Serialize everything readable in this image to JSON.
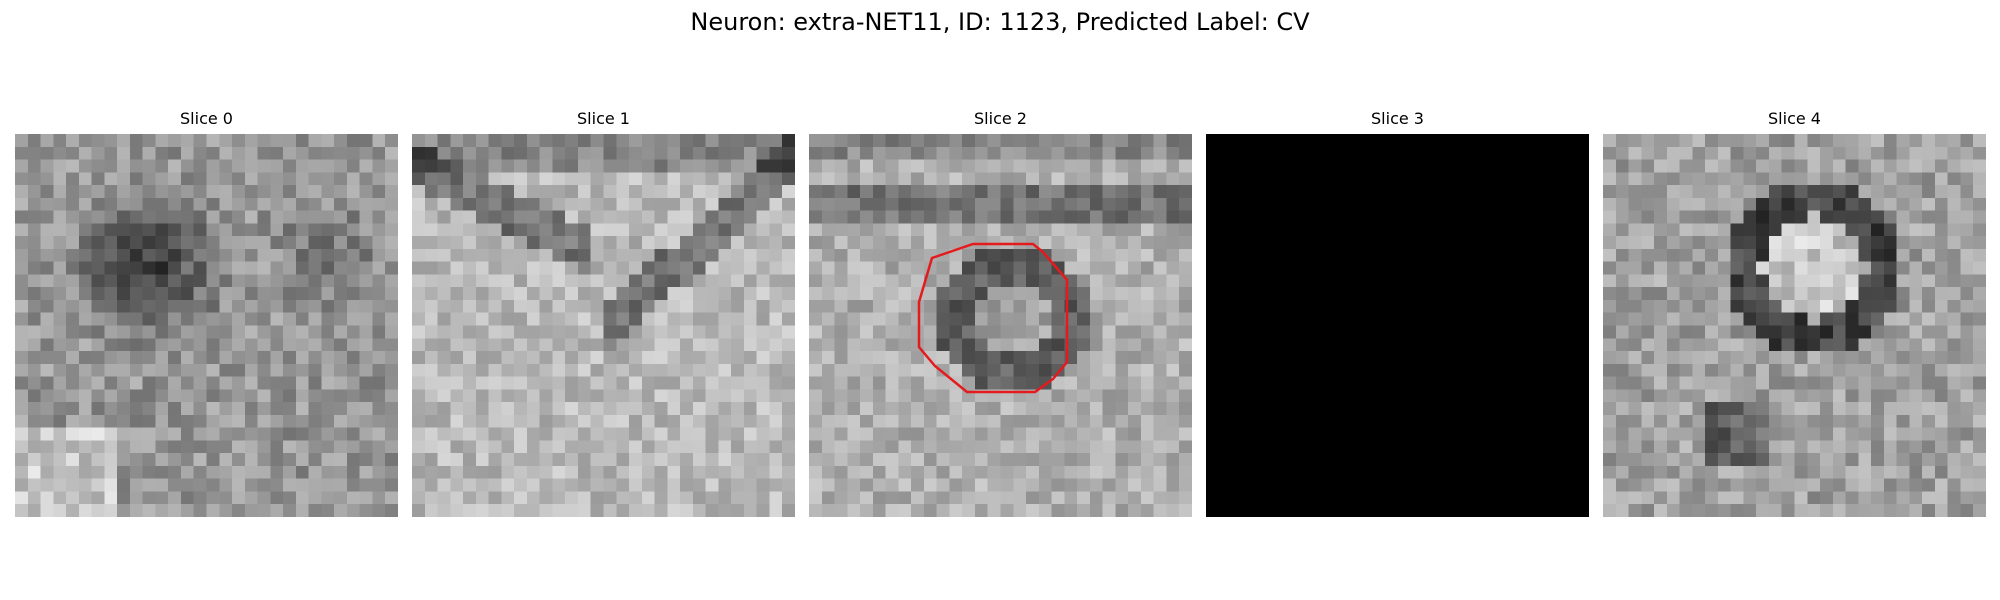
{
  "figure": {
    "title": "Neuron: extra-NET11, ID: 1123, Predicted Label: CV"
  },
  "panels": [
    {
      "title": "Slice 0",
      "blank": false,
      "outline": false
    },
    {
      "title": "Slice 1",
      "blank": false,
      "outline": false
    },
    {
      "title": "Slice 2",
      "blank": false,
      "outline": true
    },
    {
      "title": "Slice 3",
      "blank": true,
      "outline": false
    },
    {
      "title": "Slice 4",
      "blank": false,
      "outline": false
    }
  ],
  "colors": {
    "outline": "#e41a1c",
    "blank_fill": "#000000",
    "colormap": "gray"
  }
}
